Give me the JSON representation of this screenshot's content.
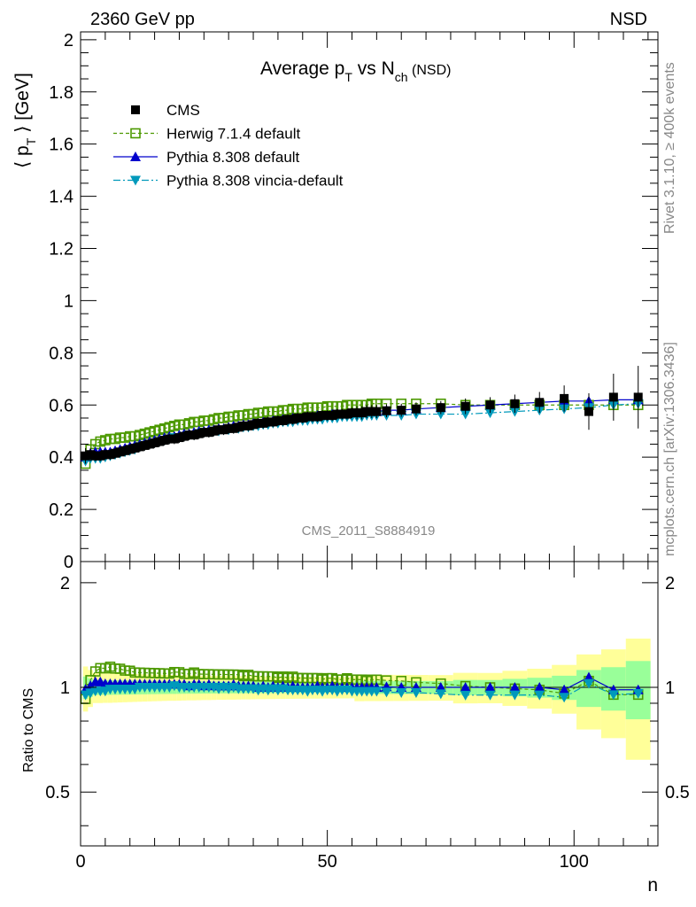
{
  "header": {
    "left": "2360 GeV pp",
    "right": "NSD"
  },
  "side": {
    "upper": "Rivet 3.1.10, ≥ 400k events",
    "lower": "mcplots.cern.ch [arXiv:1306.3436]"
  },
  "watermark": "CMS_2011_S8884919",
  "chart_data": {
    "type": "scatter",
    "title": {
      "main": "Average p",
      "sub_T": "T",
      "mid": " vs N",
      "sub_ch": "ch",
      "tail": " (NSD)"
    },
    "ylabel": {
      "pre": "⟨ p",
      "sub": "T",
      "post": " ⟩ [GeV]"
    },
    "ratio_ylabel": "Ratio to CMS",
    "xlabel": "n",
    "xlim": [
      0,
      117
    ],
    "ylim": [
      0,
      2.03
    ],
    "ratio_ylim": [
      0.35,
      2.3
    ],
    "ratio_log": true,
    "xticks": [
      "0",
      "50",
      "100"
    ],
    "yticks": [
      "0",
      "0.2",
      "0.4",
      "0.6",
      "0.8",
      "1",
      "1.2",
      "1.4",
      "1.6",
      "1.8",
      "2"
    ],
    "ratio_yticks": [
      "0.5",
      "1",
      "2"
    ],
    "colors": {
      "data": "#000000",
      "herwig": "#4c9900",
      "pythia": "#0000cc",
      "vincia": "#0099bb",
      "band_inner": "#99ff99",
      "band_outer": "#ffff99"
    },
    "x": [
      1,
      2,
      3,
      4,
      5,
      6,
      7,
      8,
      9,
      10,
      11,
      12,
      13,
      14,
      15,
      16,
      17,
      18,
      19,
      20,
      21,
      22,
      23,
      24,
      25,
      26,
      27,
      28,
      29,
      30,
      31,
      32,
      33,
      34,
      35,
      36,
      37,
      38,
      39,
      40,
      41,
      42,
      43,
      44,
      45,
      46,
      47,
      48,
      49,
      50,
      51,
      52,
      53,
      54,
      55,
      56,
      57,
      58,
      59,
      60,
      62,
      65,
      68,
      73,
      78,
      83,
      88,
      93,
      98,
      103,
      108,
      113
    ],
    "series": [
      {
        "name": "CMS",
        "values": [
          0.405,
          0.41,
          0.405,
          0.405,
          0.41,
          0.41,
          0.415,
          0.42,
          0.425,
          0.43,
          0.435,
          0.44,
          0.445,
          0.45,
          0.455,
          0.46,
          0.465,
          0.47,
          0.47,
          0.475,
          0.48,
          0.485,
          0.485,
          0.49,
          0.495,
          0.495,
          0.5,
          0.505,
          0.505,
          0.51,
          0.51,
          0.515,
          0.52,
          0.52,
          0.525,
          0.53,
          0.53,
          0.535,
          0.535,
          0.54,
          0.54,
          0.545,
          0.545,
          0.55,
          0.55,
          0.555,
          0.555,
          0.555,
          0.56,
          0.56,
          0.56,
          0.565,
          0.565,
          0.565,
          0.57,
          0.57,
          0.57,
          0.575,
          0.575,
          0.575,
          0.578,
          0.58,
          0.585,
          0.59,
          0.595,
          0.6,
          0.605,
          0.61,
          0.625,
          0.575,
          0.63,
          0.63
        ],
        "errors": [
          0.03,
          0.025,
          0.02,
          0.02,
          0.02,
          0.02,
          0.02,
          0.02,
          0.02,
          0.02,
          0.02,
          0.02,
          0.02,
          0.02,
          0.02,
          0.02,
          0.02,
          0.02,
          0.02,
          0.02,
          0.02,
          0.02,
          0.02,
          0.02,
          0.02,
          0.02,
          0.02,
          0.02,
          0.02,
          0.02,
          0.02,
          0.02,
          0.02,
          0.02,
          0.02,
          0.02,
          0.02,
          0.02,
          0.02,
          0.02,
          0.02,
          0.02,
          0.02,
          0.02,
          0.02,
          0.02,
          0.02,
          0.02,
          0.02,
          0.02,
          0.02,
          0.02,
          0.02,
          0.02,
          0.02,
          0.025,
          0.025,
          0.025,
          0.025,
          0.025,
          0.025,
          0.025,
          0.025,
          0.025,
          0.03,
          0.03,
          0.035,
          0.04,
          0.05,
          0.07,
          0.09,
          0.12
        ]
      },
      {
        "name": "Herwig 7.1.4 default",
        "values": [
          0.375,
          0.43,
          0.45,
          0.46,
          0.465,
          0.47,
          0.47,
          0.475,
          0.475,
          0.48,
          0.48,
          0.485,
          0.49,
          0.495,
          0.5,
          0.505,
          0.51,
          0.515,
          0.52,
          0.525,
          0.525,
          0.53,
          0.535,
          0.535,
          0.54,
          0.54,
          0.545,
          0.55,
          0.55,
          0.555,
          0.555,
          0.56,
          0.56,
          0.565,
          0.565,
          0.57,
          0.57,
          0.575,
          0.575,
          0.575,
          0.58,
          0.58,
          0.585,
          0.585,
          0.585,
          0.59,
          0.59,
          0.59,
          0.59,
          0.595,
          0.595,
          0.595,
          0.595,
          0.6,
          0.6,
          0.6,
          0.6,
          0.6,
          0.605,
          0.605,
          0.605,
          0.605,
          0.605,
          0.605,
          0.6,
          0.6,
          0.6,
          0.6,
          0.6,
          0.6,
          0.6,
          0.6
        ]
      },
      {
        "name": "Pythia 8.308 default",
        "values": [
          0.4,
          0.415,
          0.42,
          0.42,
          0.42,
          0.42,
          0.425,
          0.43,
          0.435,
          0.44,
          0.445,
          0.45,
          0.455,
          0.46,
          0.465,
          0.47,
          0.475,
          0.48,
          0.48,
          0.485,
          0.49,
          0.49,
          0.495,
          0.5,
          0.5,
          0.505,
          0.505,
          0.51,
          0.51,
          0.515,
          0.52,
          0.52,
          0.525,
          0.525,
          0.53,
          0.53,
          0.535,
          0.535,
          0.54,
          0.54,
          0.545,
          0.545,
          0.55,
          0.55,
          0.55,
          0.555,
          0.555,
          0.56,
          0.56,
          0.56,
          0.565,
          0.565,
          0.565,
          0.565,
          0.57,
          0.57,
          0.57,
          0.575,
          0.575,
          0.575,
          0.58,
          0.58,
          0.585,
          0.59,
          0.595,
          0.6,
          0.605,
          0.61,
          0.615,
          0.615,
          0.62,
          0.62
        ]
      },
      {
        "name": "Pythia 8.308 vincia-default",
        "values": [
          0.385,
          0.395,
          0.395,
          0.395,
          0.4,
          0.405,
          0.41,
          0.415,
          0.42,
          0.425,
          0.43,
          0.44,
          0.445,
          0.45,
          0.455,
          0.46,
          0.465,
          0.47,
          0.475,
          0.475,
          0.48,
          0.485,
          0.485,
          0.49,
          0.495,
          0.495,
          0.5,
          0.5,
          0.505,
          0.505,
          0.51,
          0.51,
          0.515,
          0.515,
          0.52,
          0.52,
          0.525,
          0.525,
          0.53,
          0.53,
          0.535,
          0.535,
          0.535,
          0.54,
          0.54,
          0.54,
          0.545,
          0.545,
          0.545,
          0.55,
          0.55,
          0.55,
          0.555,
          0.555,
          0.555,
          0.555,
          0.555,
          0.56,
          0.56,
          0.56,
          0.56,
          0.56,
          0.565,
          0.565,
          0.565,
          0.57,
          0.575,
          0.58,
          0.585,
          0.59,
          0.6,
          0.605
        ]
      }
    ]
  }
}
